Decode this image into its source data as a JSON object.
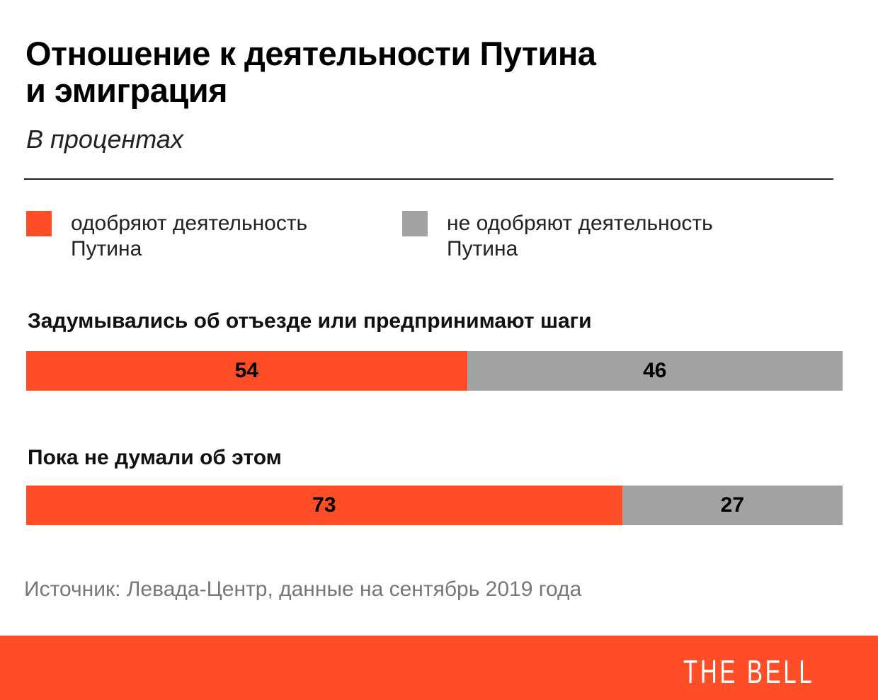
{
  "title_lines": [
    "Отношение к деятельности Путина",
    "и эмиграция"
  ],
  "subtitle": "В процентах",
  "source": "Источник:  Левада-Центр, данные на сентябрь 2019 года",
  "logo": "THE BELL",
  "colors": {
    "approve": "#FF4D27",
    "disapprove": "#A2A2A2",
    "footer": "#FF4D27"
  },
  "chart_data": {
    "type": "bar",
    "orientation": "horizontal-stacked-100",
    "title": "Отношение к деятельности Путина и эмиграция",
    "subtitle": "В процентах",
    "legend": [
      {
        "label": "одобряют деятельность Путина",
        "color": "#FF4D27"
      },
      {
        "label": "не одобряют деятельность Путина",
        "color": "#A2A2A2"
      }
    ],
    "legend_placement": "top",
    "categories": [
      "Задумывались об отъезде или предпринимают шаги",
      "Пока не думали об этом"
    ],
    "series": [
      {
        "name": "одобряют деятельность Путина",
        "values": [
          54,
          73
        ]
      },
      {
        "name": "не одобряют деятельность Путина",
        "values": [
          46,
          27
        ]
      }
    ],
    "xlim": [
      0,
      100
    ]
  }
}
